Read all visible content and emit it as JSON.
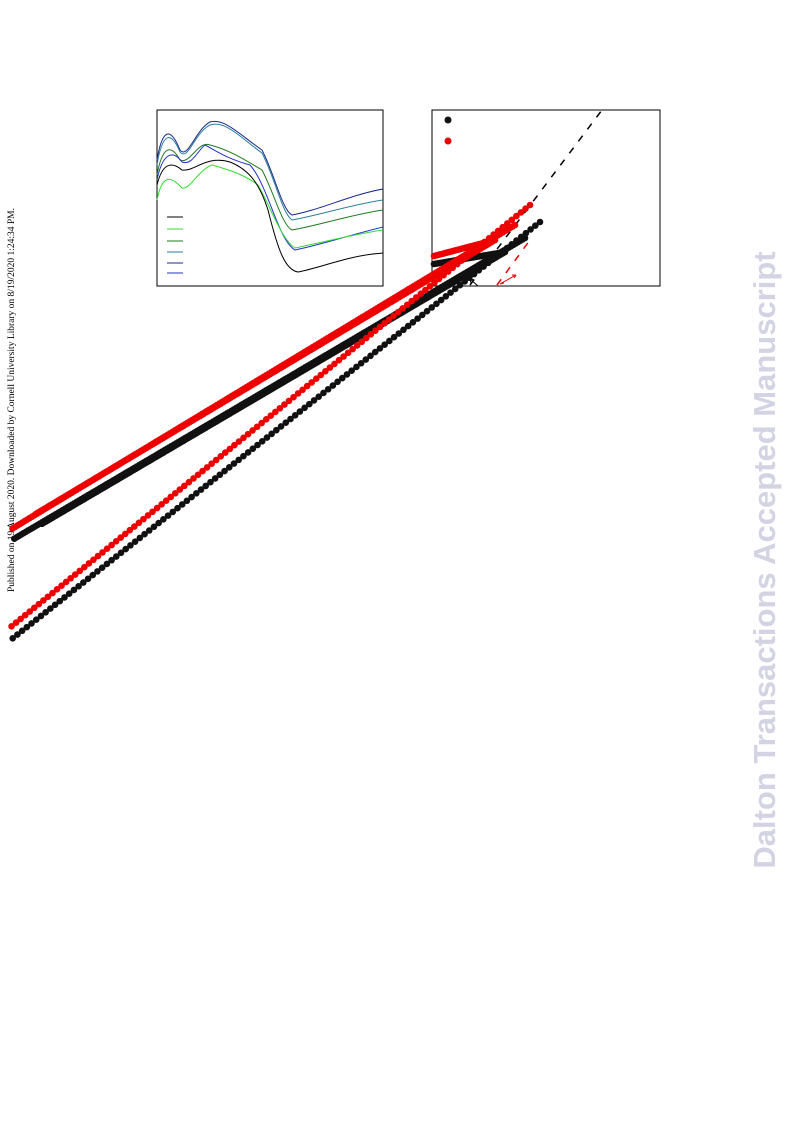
{
  "side_note": "Published on 19 August 2020. Downloaded by Cornell University Library on 8/19/2020 1:24:34 PM.",
  "watermark": "Dalton Transactions Accepted Manuscript"
}
